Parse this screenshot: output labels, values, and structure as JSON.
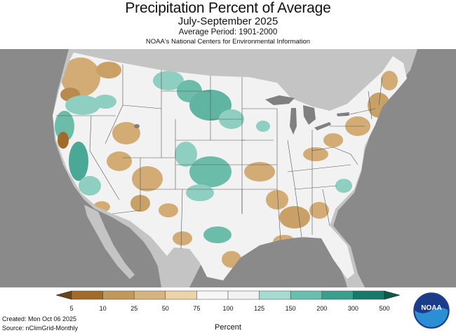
{
  "header": {
    "title": "Precipitation Percent of Average",
    "subtitle": "July-September 2025",
    "average_period": "Average Period: 1901-2000",
    "organization": "NOAA's National Centers for Environmental Information"
  },
  "legend": {
    "title": "Percent",
    "ticks": [
      "5",
      "10",
      "25",
      "50",
      "75",
      "100",
      "125",
      "150",
      "200",
      "300",
      "500"
    ],
    "bins": [
      {
        "color": "#a36b2a"
      },
      {
        "color": "#c1985a"
      },
      {
        "color": "#d6b47f"
      },
      {
        "color": "#ecd3a8"
      },
      {
        "color": "#f7f7f7"
      },
      {
        "color": "#f2f2f2"
      },
      {
        "color": "#a8dbcf"
      },
      {
        "color": "#69bfae"
      },
      {
        "color": "#3a9f8d"
      },
      {
        "color": "#167a6a"
      }
    ],
    "low_arrow_color": "#6b4415",
    "high_arrow_color": "#0b5b4d"
  },
  "footer": {
    "created": "Created: Mon Oct 06 2025",
    "source": "Source: nClimGrid-Monthly"
  },
  "logo": {
    "text": "NOAA"
  },
  "colors": {
    "background_land": "#c8c8c8",
    "ocean": "#8c8c8c",
    "lakes": "#808080",
    "neutral": "#f2f2f2",
    "dry": "#d2ac74",
    "very_dry": "#b88a4e",
    "wet": "#8fcfc1",
    "very_wet": "#4aa897"
  }
}
